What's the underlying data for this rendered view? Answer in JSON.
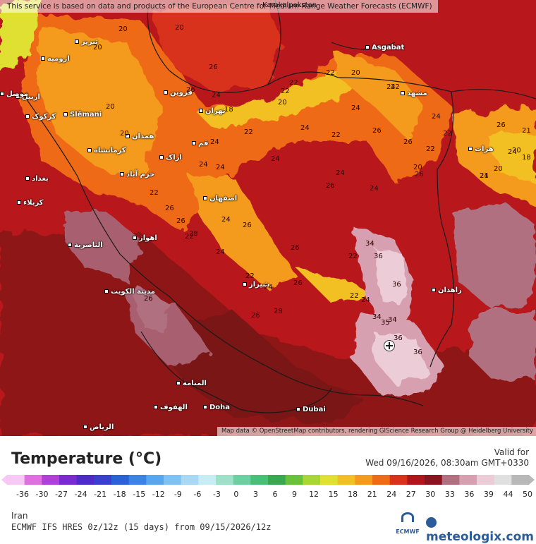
{
  "attribution_top": "This service is based on data and products of the European Centre for Medium-Range Weather Forecasts (ECMWF)",
  "attribution_bottom": "Map data © OpenStreetMap contributors, rendering GIScience Research Group @ Heidelberg University",
  "map_labels": {
    "lake": "Karakalpakstan",
    "ashgabat": "Asgabat",
    "slemani": "Slêmani",
    "doha": "Doha",
    "dubai": "Dubai",
    "tabriz": "تبریز",
    "urmia": "ارومیه",
    "erbil": "اربیل",
    "mosul": "موصل",
    "kirkuk": "کرکوک",
    "qazvin": "قزوین",
    "tehran": "تهران",
    "mashhad": "مشهد",
    "hamedan": "همدان",
    "qom": "قم",
    "kermanshah": "کرمانشاه",
    "arak": "اراک",
    "khorramabad": "خرم آباد",
    "baghdad": "بغداد",
    "karbala": "کربلاء",
    "isfahan": "اصفهان",
    "herat": "هرات",
    "nasiriyah": "الناصرية",
    "ahvaz": "اهواز",
    "kuwait": "مدينة الكويت",
    "shiraz": "شیراز",
    "zahedan": "زاهدان",
    "manama": "المنامة",
    "hofuf": "الهفوف",
    "riyadh": "الرياض"
  },
  "contour_values": [
    "20",
    "20",
    "20",
    "20",
    "20",
    "26",
    "26",
    "24",
    "22",
    "22",
    "20",
    "22",
    "24",
    "24",
    "22",
    "20",
    "18",
    "24",
    "22",
    "24",
    "24",
    "22",
    "26",
    "26",
    "22",
    "24",
    "26",
    "24",
    "24",
    "26",
    "24",
    "26",
    "34",
    "36",
    "36",
    "36",
    "22",
    "24",
    "26",
    "22",
    "24",
    "28",
    "22",
    "24",
    "24",
    "26",
    "26",
    "24",
    "22",
    "18",
    "20",
    "21",
    "20",
    "20",
    "22",
    "21",
    "24",
    "24",
    "22",
    "26",
    "26",
    "28",
    "26",
    "34",
    "35",
    "36",
    "26",
    "34"
  ],
  "legend": {
    "title": "Temperature (°C)",
    "valid_label": "Valid for",
    "valid_time": "Wed 09/16/2026, 08:30am GMT+0330",
    "scale_labels": [
      "-36",
      "-30",
      "-27",
      "-24",
      "-21",
      "-18",
      "-15",
      "-12",
      "-9",
      "-6",
      "-3",
      "0",
      "3",
      "6",
      "9",
      "12",
      "15",
      "18",
      "21",
      "24",
      "27",
      "30",
      "33",
      "36",
      "39",
      "44",
      "50"
    ],
    "scale_colors": [
      "#f8c8f5",
      "#e06fe0",
      "#b040d8",
      "#7a2ad0",
      "#4d2bc8",
      "#3a3fd0",
      "#2c62d8",
      "#3b84e6",
      "#58a6ee",
      "#7dc2f2",
      "#a8d8f4",
      "#c8ecf4",
      "#9fe0c8",
      "#6ed0a0",
      "#48c078",
      "#3aa850",
      "#6ac23a",
      "#a8d634",
      "#e0e030",
      "#f2c024",
      "#f49a1c",
      "#ee6a14",
      "#d8321a",
      "#b0161c",
      "#8a1420",
      "#b07080",
      "#d6a0b0",
      "#ecccd6",
      "#e0e0e0",
      "#b8b8b8"
    ],
    "region": "Iran",
    "model": "ECMWF IFS HRES 0z/12z (15 days) from 09/15/2026/12z",
    "ecmwf_logo_text": "ECMWF",
    "brand": "meteologix.com"
  }
}
